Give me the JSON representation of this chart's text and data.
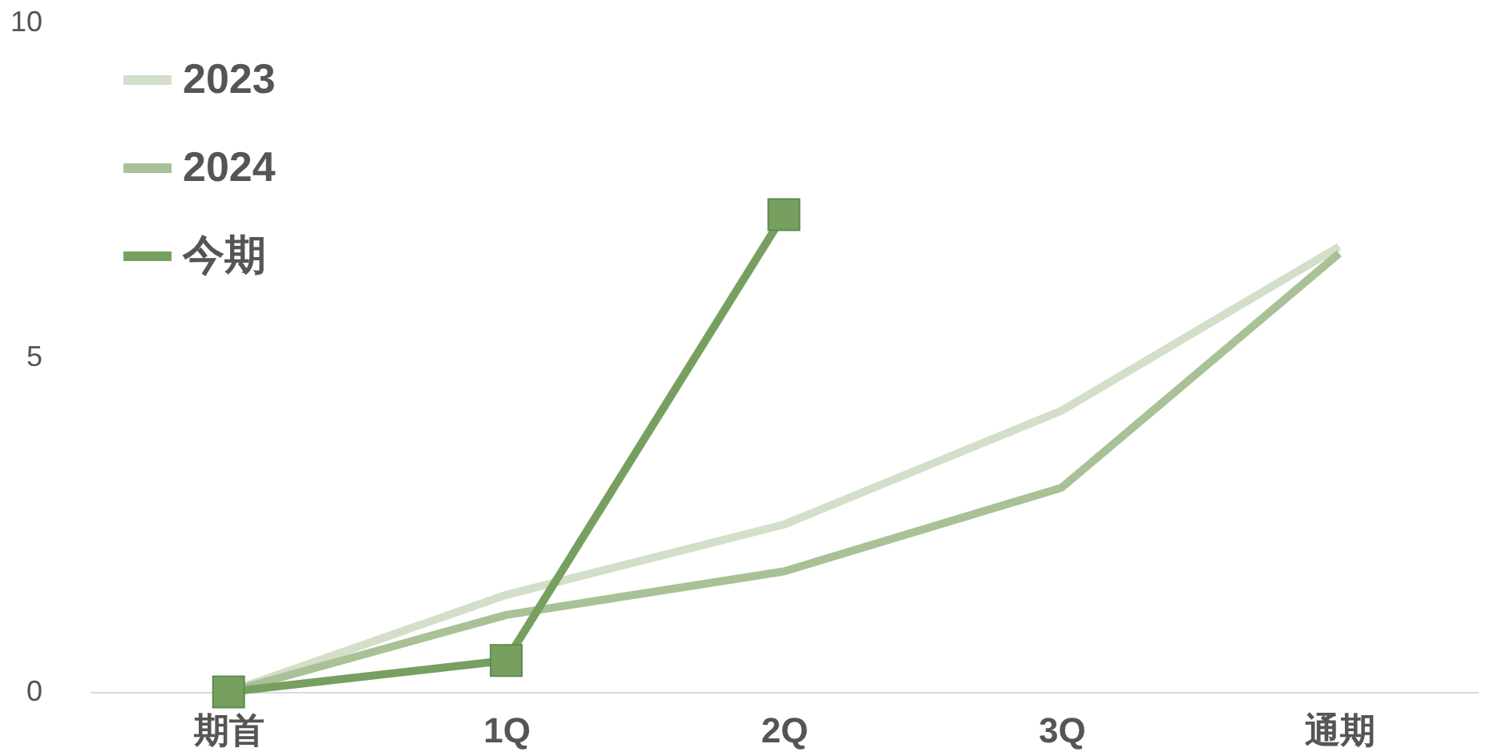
{
  "chart_data": {
    "type": "line",
    "categories": [
      "期首",
      "1Q",
      "2Q",
      "3Q",
      "通期"
    ],
    "series": [
      {
        "name": "2023",
        "color": "#d3dfc8",
        "marker": "none",
        "values": [
          0,
          1.45,
          2.5,
          4.2,
          6.65
        ]
      },
      {
        "name": "2024",
        "color": "#a9c196",
        "marker": "none",
        "values": [
          0,
          1.15,
          1.8,
          3.05,
          6.55
        ]
      },
      {
        "name": "今期",
        "color": "#77a060",
        "values": [
          0,
          0.47,
          7.13,
          null,
          null
        ]
      }
    ],
    "ylim": [
      0,
      10
    ],
    "yticks": [
      0,
      5,
      10
    ],
    "grid": false,
    "legend": "top left",
    "marker": "square",
    "line_style": "solid"
  }
}
